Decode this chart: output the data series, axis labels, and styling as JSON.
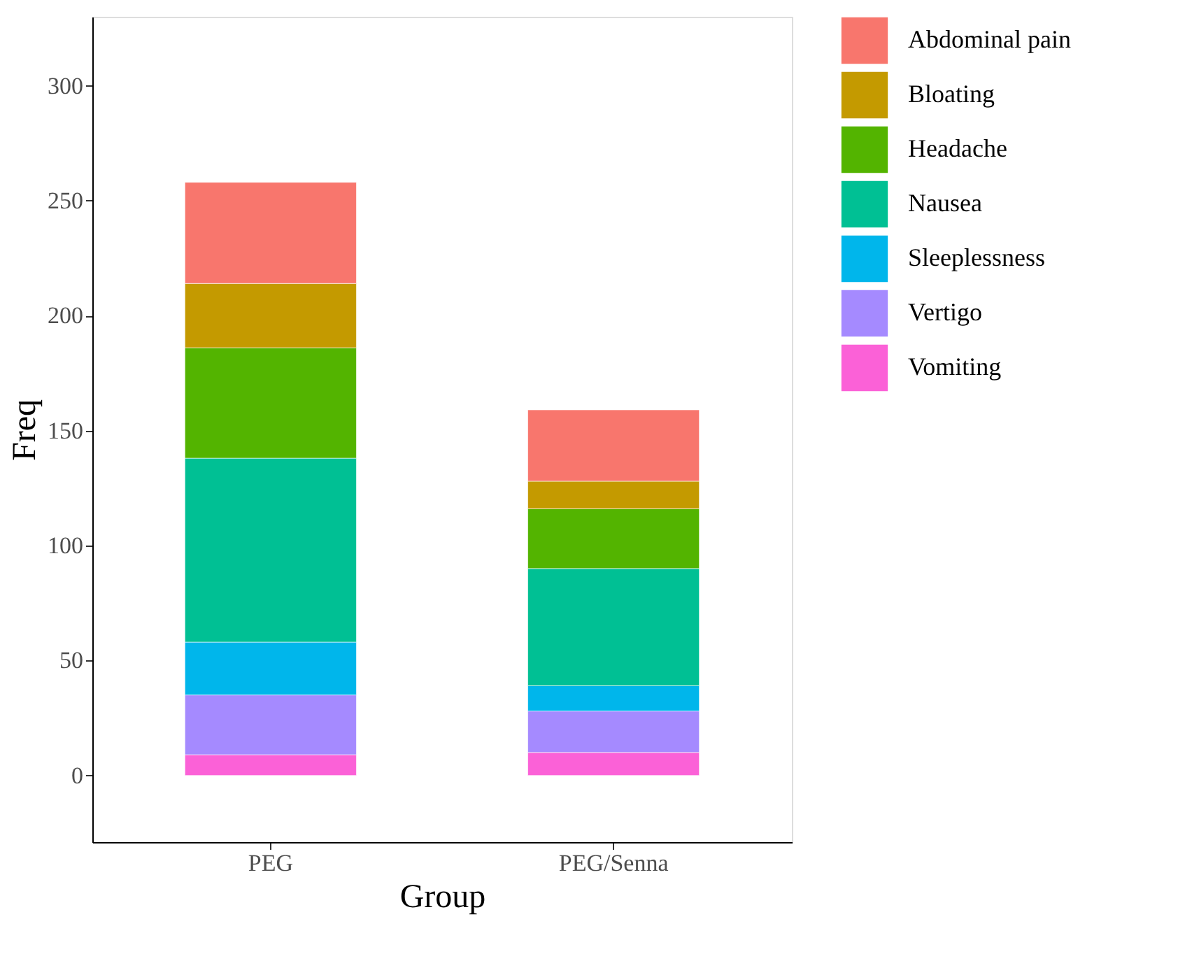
{
  "chart_data": {
    "type": "bar",
    "stacked": true,
    "xlabel": "Group",
    "ylabel": "Freq",
    "categories": [
      "PEG",
      "PEG/Senna"
    ],
    "series": [
      {
        "name": "Vomiting",
        "color": "#fb61d7",
        "values": [
          9,
          10
        ]
      },
      {
        "name": "Vertigo",
        "color": "#a58aff",
        "values": [
          26,
          18
        ]
      },
      {
        "name": "Sleeplessness",
        "color": "#00b6eb",
        "values": [
          23,
          11
        ]
      },
      {
        "name": "Nausea",
        "color": "#00c094",
        "values": [
          80,
          51
        ]
      },
      {
        "name": "Headache",
        "color": "#53b400",
        "values": [
          48,
          26
        ]
      },
      {
        "name": "Bloating",
        "color": "#c49a00",
        "values": [
          28,
          12
        ]
      },
      {
        "name": "Abdominal pain",
        "color": "#f8766d",
        "values": [
          44,
          31
        ]
      }
    ],
    "ylim": [
      -29,
      330
    ],
    "yticks": [
      0,
      50,
      100,
      150,
      200,
      250,
      300
    ],
    "grid": false,
    "legend": "right"
  }
}
